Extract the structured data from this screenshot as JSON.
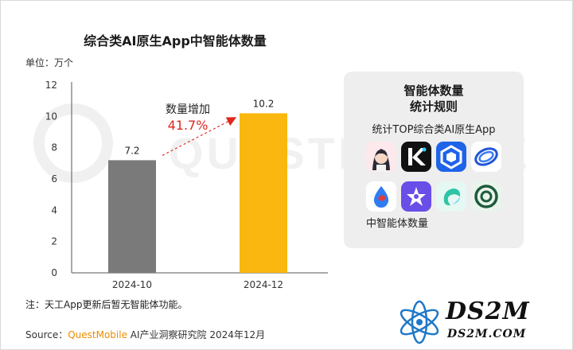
{
  "chart_data": {
    "type": "bar",
    "title": "综合类AI原生App中智能体数量",
    "unit_label": "单位：万个",
    "categories": [
      "2024-10",
      "2024-12"
    ],
    "values": [
      7.2,
      10.2
    ],
    "data_labels": [
      "7.2",
      "10.2"
    ],
    "bar_colors": [
      "#7a7a7a",
      "#f9b70f"
    ],
    "ylim": [
      0,
      12
    ],
    "yticks": [
      0,
      2,
      4,
      6,
      8,
      10,
      12
    ],
    "xlabel": "",
    "ylabel": "",
    "grid": false,
    "annotation": {
      "label": "数量增加",
      "value": "41.7%",
      "color": "#e0261e"
    }
  },
  "rule_card": {
    "title_line1": "智能体数量",
    "title_line2": "统计规则",
    "subtitle": "统计TOP综合类AI原生App",
    "footer": "中智能体数量",
    "apps": [
      {
        "icon": "avatar-girl-app-icon"
      },
      {
        "icon": "k-letter-app-icon"
      },
      {
        "icon": "blue-cube-app-icon"
      },
      {
        "icon": "orbit-ring-app-icon"
      },
      {
        "icon": "water-drop-app-icon"
      },
      {
        "icon": "purple-star-app-icon"
      },
      {
        "icon": "teal-swirl-app-icon"
      },
      {
        "icon": "green-spiral-app-icon"
      }
    ]
  },
  "note": "注：天工App更新后暂无智能体功能。",
  "source": {
    "prefix": "Source：",
    "brand": "QuestMobile",
    "rest": " AI产业洞察研究院 2024年12月"
  },
  "watermark": "QUESTMOBILE",
  "logo": {
    "name": "DS2M",
    "url": "DS2M.COM"
  }
}
